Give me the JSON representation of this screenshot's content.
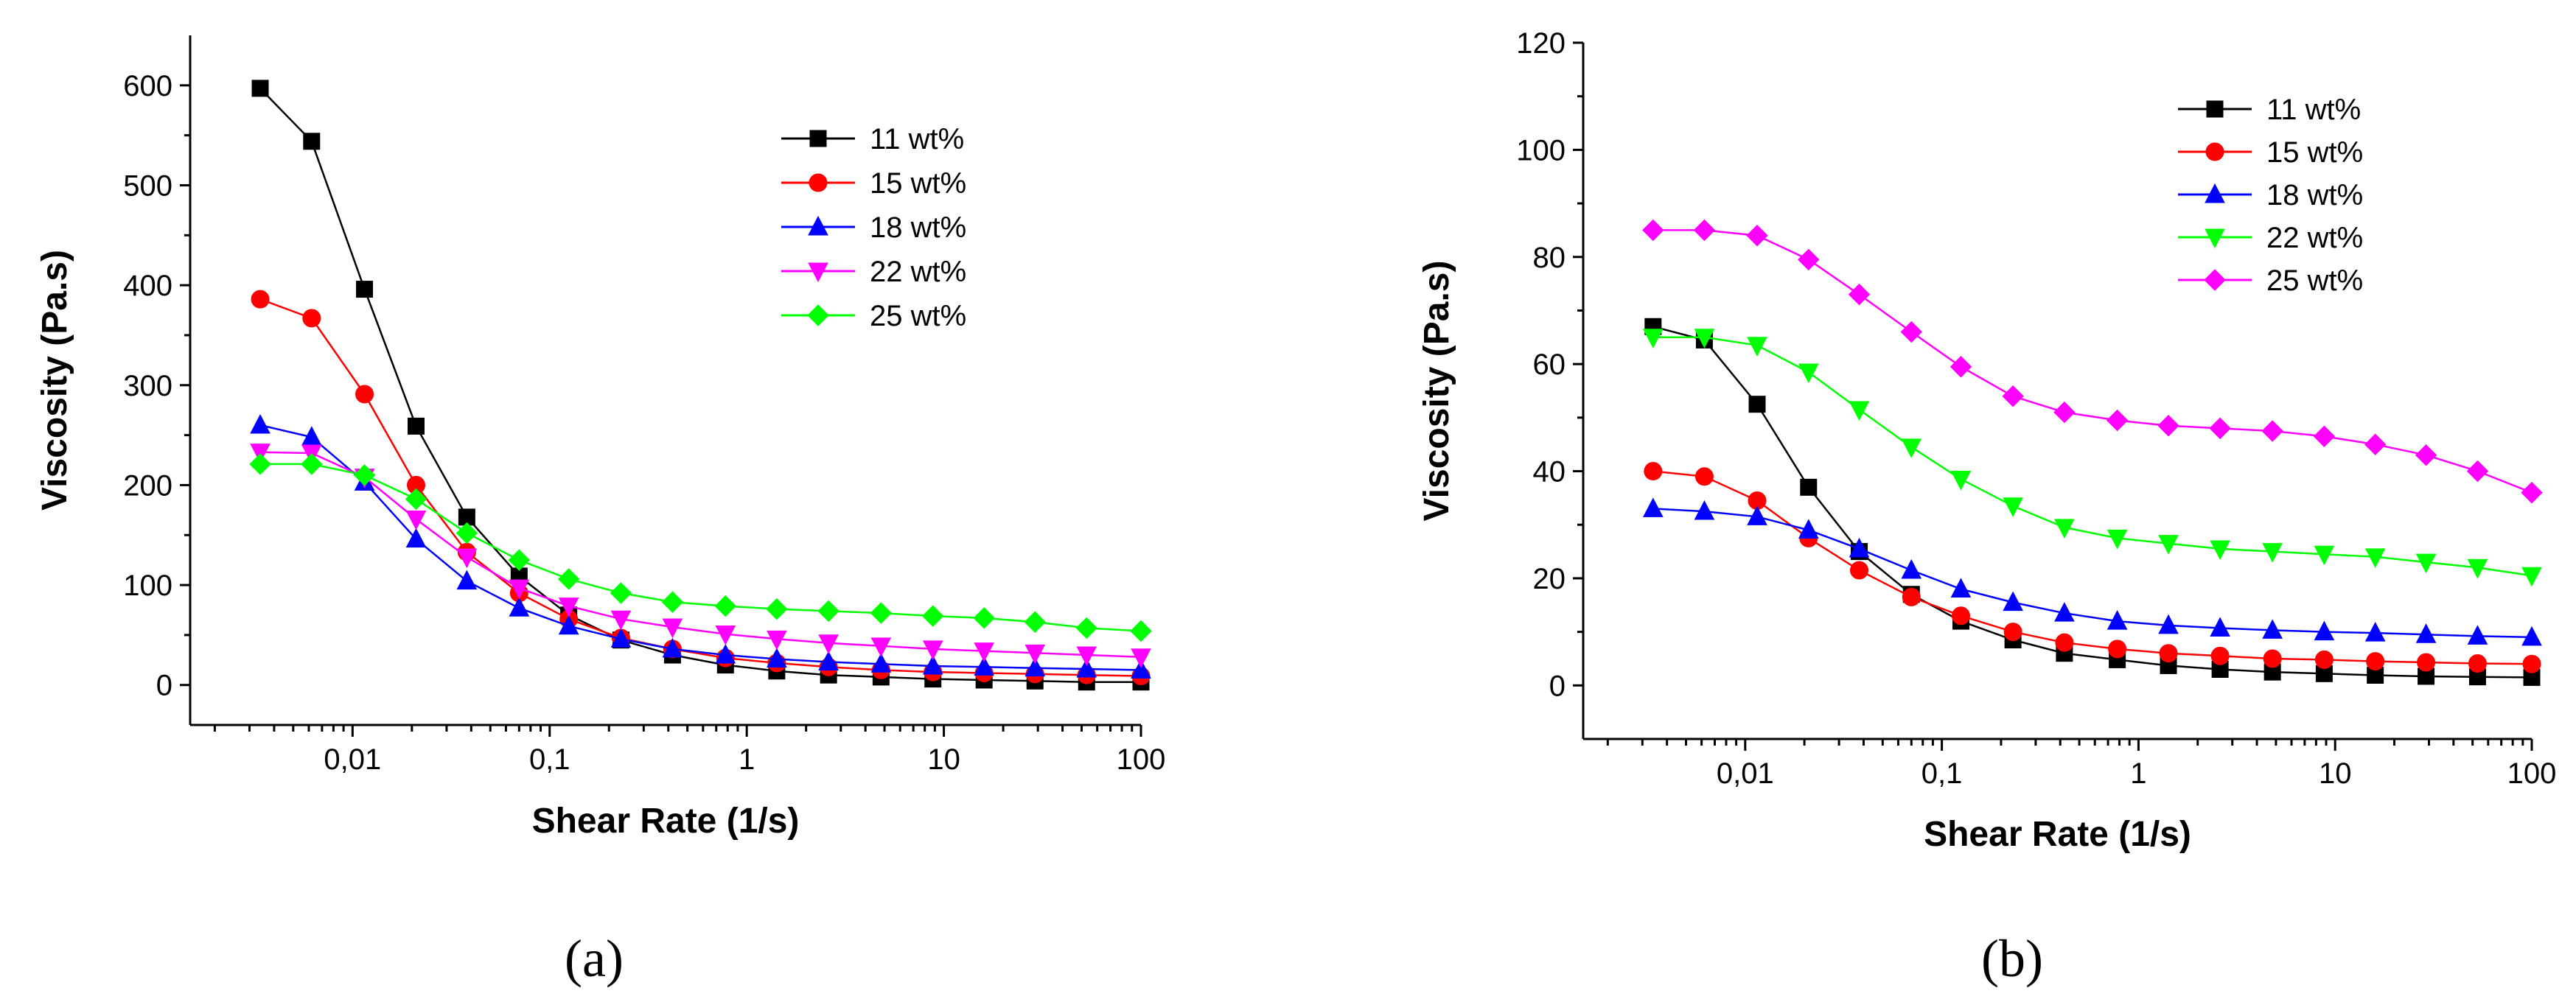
{
  "chart_data": [
    {
      "type": "line",
      "panel_label": "(a)",
      "xlabel": "Shear Rate (1/s)",
      "ylabel": "Viscosity (Pa.s)",
      "xscale": "log",
      "xlim": [
        0.0015,
        100
      ],
      "ylim": [
        -40,
        650
      ],
      "xticks": [
        0.01,
        0.1,
        1,
        10,
        100
      ],
      "xtick_labels": [
        "0,01",
        "0,1",
        "1",
        "10",
        "100"
      ],
      "yticks": [
        0,
        100,
        200,
        300,
        400,
        500,
        600
      ],
      "ytick_labels": [
        "0",
        "100",
        "200",
        "300",
        "400",
        "500",
        "600"
      ],
      "legend_position": "top-right",
      "x": [
        0.0034,
        0.0062,
        0.0115,
        0.021,
        0.038,
        0.07,
        0.125,
        0.23,
        0.42,
        0.78,
        1.42,
        2.6,
        4.8,
        8.8,
        16,
        29,
        53,
        100
      ],
      "series": [
        {
          "name": "11 wt%",
          "color": "#000000",
          "marker": "square",
          "values": [
            597,
            544,
            396,
            259,
            168,
            109,
            70,
            45,
            30,
            20,
            14,
            10,
            8,
            6,
            5,
            4,
            3,
            3
          ]
        },
        {
          "name": "15 wt%",
          "color": "#ff0000",
          "marker": "circle",
          "values": [
            386,
            367,
            291,
            200,
            133,
            92,
            66,
            47,
            36,
            27,
            22,
            18,
            15,
            13,
            12,
            11,
            10,
            9
          ]
        },
        {
          "name": "18 wt%",
          "color": "#0000ff",
          "marker": "triangle-up",
          "values": [
            260,
            248,
            203,
            146,
            104,
            77,
            59,
            46,
            36,
            30,
            26,
            23,
            21,
            19,
            18,
            17,
            16,
            15
          ]
        },
        {
          "name": "22 wt%",
          "color": "#ff00ff",
          "marker": "triangle-down",
          "values": [
            233,
            232,
            208,
            166,
            128,
            97,
            79,
            66,
            58,
            51,
            46,
            42,
            39,
            36,
            34,
            32,
            30,
            28
          ]
        },
        {
          "name": "25 wt%",
          "color": "#00ff00",
          "marker": "diamond",
          "values": [
            221,
            221,
            210,
            186,
            152,
            125,
            106,
            92,
            83,
            79,
            76,
            74,
            72,
            69,
            67,
            63,
            57,
            54
          ]
        }
      ]
    },
    {
      "type": "line",
      "panel_label": "(b)",
      "xlabel": "Shear Rate (1/s)",
      "ylabel": "Viscosity (Pa.s)",
      "xscale": "log",
      "xlim": [
        0.0015,
        100
      ],
      "ylim": [
        -10,
        120
      ],
      "xticks": [
        0.01,
        0.1,
        1,
        10,
        100
      ],
      "xtick_labels": [
        "0,01",
        "0,1",
        "1",
        "10",
        "100"
      ],
      "yticks": [
        0,
        20,
        40,
        60,
        80,
        100,
        120
      ],
      "ytick_labels": [
        "0",
        "20",
        "40",
        "60",
        "80",
        "100",
        "120"
      ],
      "legend_position": "top-right",
      "x": [
        0.0034,
        0.0062,
        0.0115,
        0.021,
        0.038,
        0.07,
        0.125,
        0.23,
        0.42,
        0.78,
        1.42,
        2.6,
        4.8,
        8.8,
        16,
        29,
        53,
        100
      ],
      "series": [
        {
          "name": "11 wt%",
          "color": "#000000",
          "marker": "square",
          "values": [
            67,
            64.5,
            52.5,
            37,
            25,
            17,
            12,
            8.5,
            6,
            4.8,
            3.7,
            3,
            2.5,
            2.2,
            1.9,
            1.7,
            1.6,
            1.5
          ]
        },
        {
          "name": "15 wt%",
          "color": "#ff0000",
          "marker": "circle",
          "values": [
            40,
            39,
            34.5,
            27.5,
            21.5,
            16.5,
            13,
            10,
            8,
            6.8,
            6,
            5.5,
            5,
            4.8,
            4.5,
            4.3,
            4.1,
            4
          ]
        },
        {
          "name": "18 wt%",
          "color": "#0000ff",
          "marker": "triangle-up",
          "values": [
            33,
            32.5,
            31.5,
            29,
            25.5,
            21.5,
            18,
            15.5,
            13.5,
            12,
            11.2,
            10.7,
            10.3,
            10,
            9.8,
            9.5,
            9.2,
            9
          ]
        },
        {
          "name": "22 wt%",
          "color": "#00ff00",
          "marker": "triangle-down",
          "values": [
            65,
            65,
            63.5,
            58.5,
            51.5,
            44.5,
            38.5,
            33.5,
            29.5,
            27.5,
            26.5,
            25.5,
            25,
            24.5,
            24,
            23,
            22,
            20.5
          ]
        },
        {
          "name": "25 wt%",
          "color": "#ff00ff",
          "marker": "diamond",
          "values": [
            85,
            85,
            84,
            79.5,
            73,
            66,
            59.5,
            54,
            51,
            49.5,
            48.5,
            48,
            47.5,
            46.5,
            45,
            43,
            40,
            36
          ]
        }
      ]
    }
  ]
}
